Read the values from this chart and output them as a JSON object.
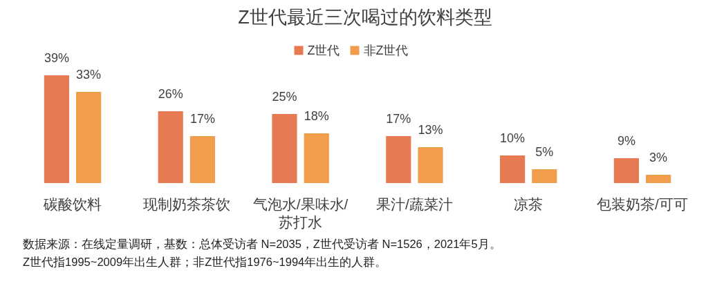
{
  "chart_data": {
    "type": "bar",
    "title": "Z世代最近三次喝过的饮料类型",
    "categories": [
      "碳酸饮料",
      "现制奶茶茶饮",
      "气泡水/果味水/苏打水",
      "果汁/蔬菜汁",
      "凉茶",
      "包装奶茶/可可"
    ],
    "series": [
      {
        "name": "Z世代",
        "color": "#e87a53",
        "values": [
          39,
          26,
          25,
          17,
          10,
          9
        ],
        "value_labels": [
          "39%",
          "26%",
          "25%",
          "17%",
          "10%",
          "9%"
        ]
      },
      {
        "name": "非Z世代",
        "color": "#f09e4b",
        "values": [
          33,
          17,
          18,
          13,
          5,
          3
        ],
        "value_labels": [
          "33%",
          "17%",
          "18%",
          "13%",
          "5%",
          "3%"
        ]
      }
    ],
    "legend": "top",
    "tick_labels": "x",
    "annotations": [
      "数据来源：在线定量调研，基数：总体受访者 N=2035，Z世代受访者 N=1526，2021年5月。",
      "Z世代指1995~2009年出生人群；非Z世代指1976~1994年出生的人群。"
    ]
  }
}
